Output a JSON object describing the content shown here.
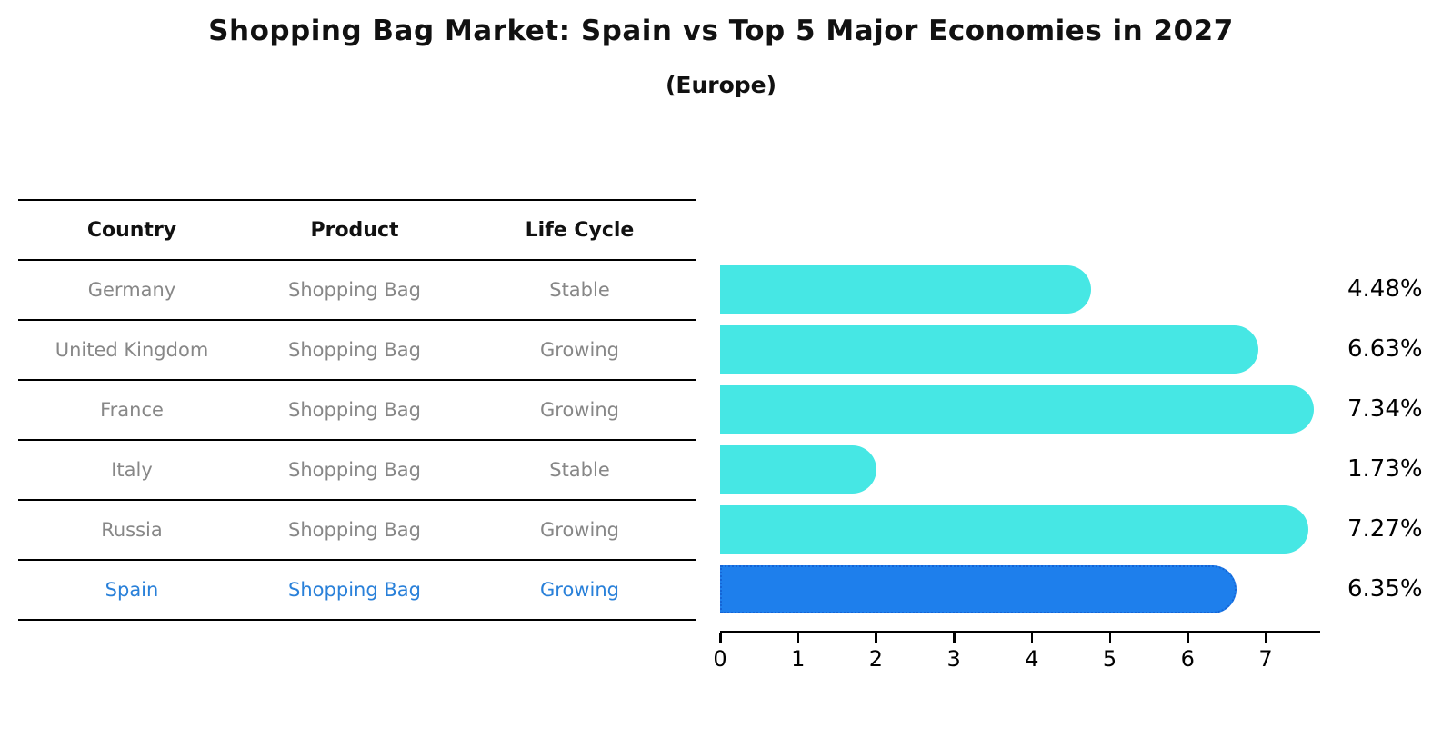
{
  "title": "Shopping Bag Market: Spain vs Top 5 Major Economies in 2027",
  "subtitle": "(Europe)",
  "table": {
    "headers": {
      "country": "Country",
      "product": "Product",
      "life_cycle": "Life Cycle"
    },
    "rows": [
      {
        "country": "Germany",
        "product": "Shopping Bag",
        "life_cycle": "Stable",
        "highlighted": false
      },
      {
        "country": "United Kingdom",
        "product": "Shopping Bag",
        "life_cycle": "Growing",
        "highlighted": false
      },
      {
        "country": "France",
        "product": "Shopping Bag",
        "life_cycle": "Growing",
        "highlighted": false
      },
      {
        "country": "Italy",
        "product": "Shopping Bag",
        "life_cycle": "Stable",
        "highlighted": false
      },
      {
        "country": "Russia",
        "product": "Shopping Bag",
        "life_cycle": "Growing",
        "highlighted": false
      },
      {
        "country": "Spain",
        "product": "Shopping Bag",
        "life_cycle": "Growing",
        "highlighted": true
      }
    ]
  },
  "chart_data": {
    "type": "bar",
    "orientation": "horizontal",
    "title": "Shopping Bag Market: Spain vs Top 5 Major Economies in 2027 (Europe)",
    "categories": [
      "Germany",
      "United Kingdom",
      "France",
      "Italy",
      "Russia",
      "Spain"
    ],
    "values": [
      4.48,
      6.63,
      7.34,
      1.73,
      7.27,
      6.35
    ],
    "value_labels": [
      "4.48%",
      "6.63%",
      "7.34%",
      "1.73%",
      "7.27%",
      "6.35%"
    ],
    "xlabel": "",
    "ylabel": "",
    "xlim": [
      0,
      7.7
    ],
    "x_ticks": [
      0,
      1,
      2,
      3,
      4,
      5,
      6,
      7
    ],
    "grid": false,
    "legend": false,
    "highlight_index": 5,
    "colors": {
      "bar": "#46E7E4",
      "highlight_bar": "#1E7FEC",
      "highlight_border": "#1565D6",
      "highlight_text": "#2980D9",
      "row_text": "#878787",
      "header_text": "#111111"
    }
  }
}
